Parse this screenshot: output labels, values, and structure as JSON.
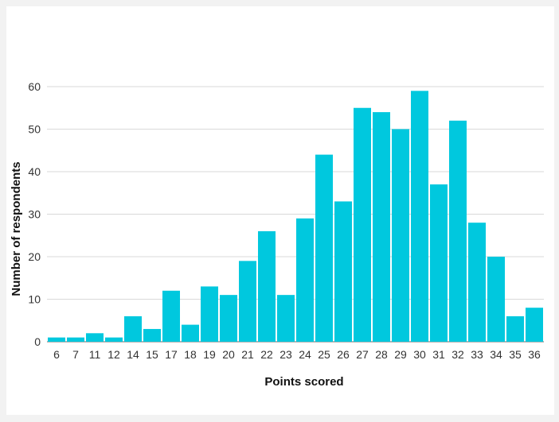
{
  "colors": {
    "bar": "#00c8de",
    "grid": "#d9d9d9",
    "axis": "#888888",
    "page_background": "#f2f2f2",
    "card_background": "#ffffff"
  },
  "chart_data": {
    "type": "bar",
    "title": "",
    "xlabel": "Points scored",
    "ylabel": "Number of respondents",
    "categories": [
      "6",
      "7",
      "11",
      "12",
      "14",
      "15",
      "17",
      "18",
      "19",
      "20",
      "21",
      "22",
      "23",
      "24",
      "25",
      "26",
      "27",
      "28",
      "29",
      "30",
      "31",
      "32",
      "33",
      "34",
      "35",
      "36"
    ],
    "values": [
      1,
      1,
      2,
      1,
      6,
      3,
      12,
      4,
      13,
      11,
      19,
      26,
      11,
      29,
      44,
      33,
      55,
      54,
      50,
      59,
      37,
      52,
      28,
      20,
      6,
      8
    ],
    "ylim": [
      0,
      60
    ],
    "yticks": [
      0,
      10,
      20,
      30,
      40,
      50,
      60
    ],
    "grid": true,
    "legend": "none"
  }
}
